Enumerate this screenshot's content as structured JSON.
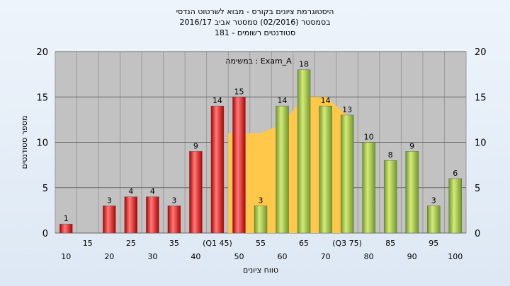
{
  "title_lines": [
    "היסטוגרמת ציונים בקורס - מבוא לשרטוט הנדסי",
    "בסמסטר  (02/2016)  סמסטר אביב 2016/17",
    "סטודנטים רשומים - 181"
  ],
  "chart_data": {
    "type": "bar",
    "title": "היסטוגרמת ציונים בקורס - מבוא לשרטוט הנדסי",
    "legend_text": "במשימה : Exam_A",
    "xlabel": "טווח ציונים",
    "ylabel": "מספר סטודנטים",
    "ylim": [
      0,
      20
    ],
    "yticks": [
      0,
      5,
      10,
      15,
      20
    ],
    "grid": true,
    "categories": [
      "10",
      "15",
      "20",
      "25",
      "30",
      "35",
      "40",
      "45",
      "50",
      "55",
      "60",
      "65",
      "70",
      "75",
      "80",
      "85",
      "90",
      "95",
      "100"
    ],
    "tick_labels": [
      "10",
      "15",
      "20",
      "25",
      "30",
      "35",
      "40",
      "(Q1 45)",
      "50",
      "55",
      "60",
      "65",
      "70",
      "(Q3 75)",
      "80",
      "85",
      "90",
      "95",
      "100"
    ],
    "values": [
      1,
      0,
      3,
      4,
      4,
      3,
      9,
      14,
      15,
      3,
      14,
      18,
      14,
      13,
      10,
      8,
      9,
      3,
      6
    ],
    "bar_colors": [
      "red",
      "red",
      "red",
      "red",
      "red",
      "red",
      "red",
      "red",
      "red",
      "green",
      "green",
      "green",
      "green",
      "green",
      "green",
      "green",
      "green",
      "green",
      "green"
    ],
    "area_values": [
      0,
      0,
      0,
      0,
      0,
      0,
      0,
      0,
      11,
      11,
      12,
      15,
      15,
      13,
      0,
      0,
      0,
      0,
      0
    ],
    "colors": {
      "red_light": "#ff7a7a",
      "red_dark": "#b00000",
      "green_light": "#d6ea7a",
      "green_dark": "#6f9a2a",
      "area": "#ffc84a",
      "plot_bg": "#c2c2c2"
    }
  }
}
